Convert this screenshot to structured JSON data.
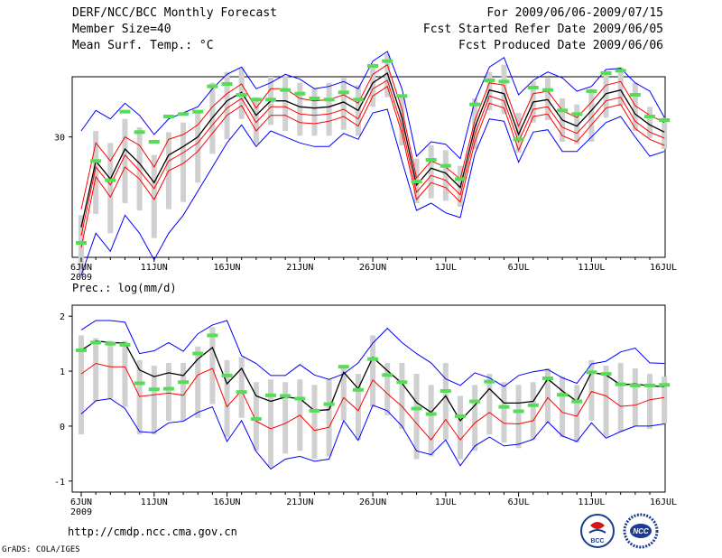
{
  "header": {
    "title": "DERF/NCC/BCC Monthly Forecast",
    "member_size": "Member Size=40",
    "variable": "Mean Surf. Temp.: °C",
    "forecast_period": "For 2009/06/06-2009/07/15",
    "started_refer": "Fcst Started Refer Date 2009/06/05",
    "produced": "Fcst Produced Date 2009/06/06"
  },
  "footer": {
    "url": "http://cmdp.ncc.cma.gov.cn",
    "grads": "GrADS: COLA/IGES"
  },
  "logos": {
    "bcc": "BCC",
    "ncc": "NCC"
  },
  "colors": {
    "spread": "#0000ff",
    "mean": "#000000",
    "median": "#ff0000",
    "marker": "#55dd55",
    "box": "#d0d0d0"
  },
  "chart_data": [
    {
      "type": "line",
      "title": "Mean Surf. Temp.: °C",
      "xlabel": "",
      "ylabel": "",
      "x_tick_labels": [
        "6JUN",
        "11JUN",
        "16JUN",
        "21JUN",
        "26JUN",
        "1JUL",
        "6JUL",
        "11JUL",
        "16JUL"
      ],
      "x_year_label": "2009",
      "y_tick_labels": [
        "30"
      ],
      "y_ticks": [
        30
      ],
      "ylim": [
        20,
        35
      ],
      "xlim": [
        0,
        40
      ],
      "series": [
        {
          "name": "max",
          "values": [
            30.5,
            32.2,
            31.5,
            32.8,
            31.8,
            30.2,
            31.5,
            32,
            32.5,
            34,
            35.2,
            35.8,
            34,
            34.5,
            35.2,
            34.8,
            34,
            34.2,
            34.6,
            34,
            36.3,
            37.1,
            34,
            28.4,
            29.6,
            29.4,
            28.2,
            33,
            35.8,
            36.6,
            33.5,
            34.7,
            35.4,
            34.9,
            33.8,
            34.2,
            35.6,
            35.7,
            34.5,
            33.8,
            31.6
          ]
        },
        {
          "name": "upper",
          "values": [
            24,
            29.5,
            28,
            30,
            29.3,
            27.5,
            29.8,
            30.2,
            31,
            32.5,
            33.6,
            34.4,
            32.4,
            34,
            34,
            33.2,
            33,
            33.1,
            33.5,
            32.8,
            35.2,
            36,
            32.3,
            26.6,
            28,
            27.5,
            26.5,
            31.4,
            34.5,
            34.3,
            30.9,
            33.6,
            33.8,
            32.2,
            31.6,
            32.9,
            34.3,
            34.6,
            32.6,
            31.8,
            31.2
          ]
        },
        {
          "name": "mean",
          "values": [
            22.5,
            28,
            26.5,
            29,
            27.8,
            26.2,
            28.5,
            29.2,
            30,
            31.6,
            33,
            33.7,
            31.8,
            33,
            33,
            32.5,
            32.4,
            32.5,
            32.9,
            32.2,
            34.5,
            35.3,
            31.6,
            26,
            27.4,
            27,
            25.8,
            30.8,
            33.9,
            33.6,
            30.2,
            32.9,
            33.1,
            31.4,
            30.9,
            32.2,
            33.6,
            33.9,
            31.9,
            31,
            30.4
          ]
        },
        {
          "name": "median",
          "values": [
            21.8,
            27.5,
            26,
            28.5,
            27.2,
            25.7,
            28,
            28.7,
            29.5,
            31,
            32.4,
            33.2,
            31.2,
            32.5,
            32.5,
            31.9,
            31.8,
            31.9,
            32.3,
            31.5,
            34,
            34.7,
            30.9,
            25.4,
            26.8,
            26.4,
            25.2,
            30.2,
            33.4,
            33,
            29.6,
            32.3,
            32.5,
            30.8,
            30.3,
            31.6,
            33,
            33.3,
            31.3,
            30.4,
            29.9
          ]
        },
        {
          "name": "lower",
          "values": [
            20.8,
            26.7,
            25,
            27.5,
            26.5,
            24.8,
            27.2,
            27.8,
            28.8,
            30.3,
            31.8,
            32.6,
            30.5,
            31.8,
            31.8,
            31.2,
            31.1,
            31.3,
            31.7,
            30.9,
            33.4,
            34.2,
            30.3,
            24.8,
            26.2,
            25.8,
            24.6,
            29.6,
            32.8,
            32.4,
            28.9,
            31.7,
            31.9,
            30.1,
            29.6,
            31,
            32.4,
            32.7,
            30.7,
            29.8,
            29.3
          ]
        },
        {
          "name": "min",
          "values": [
            18.5,
            22,
            20.5,
            23.5,
            22,
            19.8,
            22,
            23.5,
            25.5,
            27.5,
            29.5,
            31,
            29.2,
            30.5,
            30,
            29.5,
            29.2,
            29.2,
            30.3,
            29.8,
            32,
            32.3,
            28,
            23.9,
            24.5,
            23.7,
            23.3,
            28.6,
            31.5,
            31.3,
            27.9,
            30.4,
            30.6,
            28.8,
            28.8,
            30,
            31.2,
            31.7,
            30,
            28.4,
            28.8
          ]
        },
        {
          "name": "box_low",
          "values": [
            18.5,
            23.6,
            22,
            24.5,
            23.9,
            21.6,
            24,
            24.6,
            26.2,
            28.6,
            29.8,
            31.5,
            29.4,
            31,
            30.5,
            30.1,
            30.1,
            30.1,
            30.6,
            30.1,
            32.5,
            33.3,
            29.3,
            24.5,
            24.9,
            24.7,
            24.2,
            29,
            32.2,
            31.9,
            28.7,
            31.2,
            31.4,
            29.6,
            29.4,
            29.6,
            31.6,
            32.6,
            30.5,
            29.9,
            29
          ]
        },
        {
          "name": "box_high",
          "values": [
            23.5,
            30.5,
            29.5,
            31.5,
            30.8,
            28.5,
            30.4,
            31.2,
            32,
            34.5,
            35.4,
            35.7,
            33.3,
            35,
            35.1,
            34.5,
            34,
            34.5,
            34.9,
            34.3,
            36.1,
            36.9,
            33.5,
            28.2,
            29.3,
            28.9,
            27.6,
            33.2,
            35.4,
            36,
            32,
            34.6,
            34.9,
            33.2,
            32.7,
            34,
            35.2,
            35.8,
            34.5,
            32.5,
            31.6
          ]
        },
        {
          "name": "marker",
          "values": [
            21.2,
            28,
            26.4,
            32.1,
            30.4,
            29.6,
            31.7,
            31.9,
            32.1,
            34.2,
            34.4,
            33.5,
            33.1,
            33.1,
            33.9,
            33.6,
            33.2,
            33.1,
            33.7,
            33.1,
            35.9,
            36.3,
            33.4,
            26.3,
            28.1,
            27.6,
            26.5,
            32.7,
            34.7,
            34.6,
            29.8,
            34.1,
            33.9,
            32.2,
            31.9,
            33.8,
            35.3,
            35.5,
            33.5,
            31.7,
            31.4
          ]
        }
      ]
    },
    {
      "type": "line",
      "title": "Prec.: log(mm/d)",
      "xlabel": "",
      "ylabel": "",
      "x_tick_labels": [
        "6JUN",
        "11JUN",
        "16JUN",
        "21JUN",
        "26JUN",
        "1JUL",
        "6JUL",
        "11JUL",
        "16JUL"
      ],
      "x_year_label": "2009",
      "y_tick_labels": [
        "2",
        "1",
        "0",
        "-1"
      ],
      "y_ticks": [
        2,
        1,
        0,
        -1
      ],
      "ylim": [
        -1.2,
        2.2
      ],
      "xlim": [
        0,
        40
      ],
      "series": [
        {
          "name": "max",
          "values": [
            1.75,
            1.92,
            1.92,
            1.89,
            1.32,
            1.37,
            1.52,
            1.36,
            1.68,
            1.84,
            1.92,
            1.28,
            1.14,
            0.92,
            0.92,
            1.12,
            0.93,
            0.85,
            0.95,
            1.15,
            1.51,
            1.78,
            1.52,
            1.32,
            1.15,
            0.86,
            0.74,
            0.97,
            0.88,
            0.72,
            0.92,
            0.99,
            1.03,
            0.88,
            0.78,
            1.13,
            1.18,
            1.35,
            1.42,
            1.15,
            1.14
          ]
        },
        {
          "name": "mean",
          "values": [
            1.38,
            1.55,
            1.52,
            1.51,
            1.02,
            0.9,
            0.97,
            0.92,
            1.22,
            1.43,
            0.77,
            1.05,
            0.55,
            0.45,
            0.53,
            0.5,
            0.28,
            0.3,
            0.98,
            0.68,
            1.25,
            1.01,
            0.78,
            0.43,
            0.25,
            0.55,
            0.1,
            0.38,
            0.68,
            0.42,
            0.42,
            0.45,
            0.86,
            0.64,
            0.45,
            0.98,
            0.93,
            0.75,
            0.77,
            0.73,
            0.72
          ]
        },
        {
          "name": "median",
          "values": [
            0.95,
            1.14,
            1.08,
            1.08,
            0.54,
            0.57,
            0.6,
            0.56,
            0.93,
            1.05,
            0.35,
            0.65,
            0.09,
            -0.05,
            0.05,
            0.2,
            -0.08,
            -0.02,
            0.52,
            0.28,
            0.84,
            0.59,
            0.36,
            0.05,
            -0.25,
            0.12,
            -0.25,
            0.06,
            0.25,
            0.05,
            0.04,
            0.1,
            0.52,
            0.25,
            0.18,
            0.63,
            0.55,
            0.36,
            0.38,
            0.48,
            0.52
          ]
        },
        {
          "name": "min",
          "values": [
            0.22,
            0.46,
            0.5,
            0.32,
            -0.1,
            -0.12,
            0.06,
            0.09,
            0.25,
            0.35,
            -0.28,
            0.1,
            -0.46,
            -0.78,
            -0.6,
            -0.55,
            -0.64,
            -0.6,
            0.1,
            -0.26,
            0.38,
            0.28,
            0.0,
            -0.45,
            -0.52,
            -0.25,
            -0.72,
            -0.36,
            -0.2,
            -0.36,
            -0.33,
            -0.24,
            0.08,
            -0.18,
            -0.28,
            0.06,
            -0.22,
            -0.1,
            0.0,
            0.0,
            0.04
          ]
        },
        {
          "name": "box_low",
          "values": [
            -0.15,
            0.45,
            0.5,
            0.35,
            -0.15,
            -0.15,
            0.1,
            0.1,
            0.15,
            0.4,
            -0.2,
            0.15,
            -0.45,
            -0.75,
            -0.5,
            -0.45,
            -0.6,
            -0.55,
            0.1,
            -0.25,
            0.35,
            0.2,
            -0.05,
            -0.6,
            -0.55,
            -0.25,
            -0.6,
            -0.45,
            -0.15,
            -0.3,
            -0.4,
            -0.25,
            0.05,
            -0.2,
            -0.3,
            0.1,
            -0.2,
            -0.1,
            0.0,
            -0.05,
            0.05
          ]
        },
        {
          "name": "box_high",
          "values": [
            1.65,
            1.6,
            1.55,
            1.55,
            1.2,
            1.1,
            1.15,
            1.15,
            1.45,
            1.8,
            1.2,
            1.25,
            0.8,
            0.85,
            0.8,
            0.85,
            0.75,
            0.85,
            1.1,
            0.95,
            1.65,
            1.15,
            1.15,
            0.95,
            0.75,
            1.15,
            0.55,
            0.75,
            0.95,
            0.8,
            0.75,
            0.8,
            1.05,
            0.9,
            0.75,
            1.2,
            1.1,
            1.15,
            1.05,
            0.95,
            0.9
          ]
        },
        {
          "name": "marker",
          "values": [
            1.38,
            1.52,
            1.5,
            1.48,
            0.78,
            0.67,
            0.68,
            0.8,
            1.32,
            1.65,
            0.92,
            0.62,
            0.13,
            0.56,
            0.55,
            0.5,
            0.28,
            0.4,
            1.08,
            0.66,
            1.22,
            0.93,
            0.8,
            0.32,
            0.22,
            0.64,
            0.18,
            0.45,
            0.81,
            0.35,
            0.27,
            0.38,
            0.87,
            0.57,
            0.45,
            0.98,
            0.95,
            0.76,
            0.74,
            0.74,
            0.75
          ]
        }
      ]
    }
  ]
}
